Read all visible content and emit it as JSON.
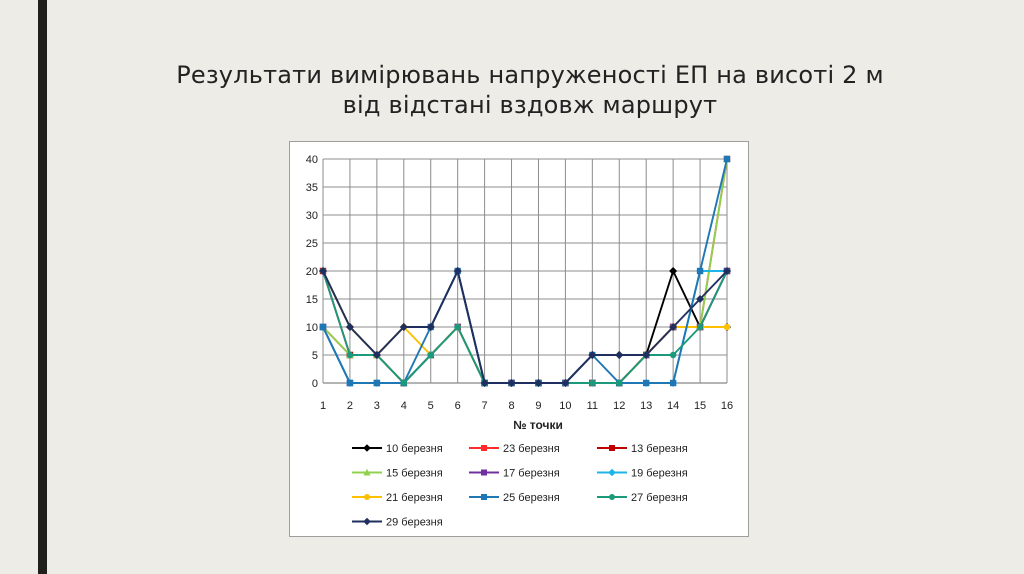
{
  "slide": {
    "title_line1": "Результати вимірювань напруженості ЕП на висоті 2 м",
    "title_line2": "від відстані вздовж маршрут"
  },
  "chart_data": {
    "type": "line",
    "xlabel": "№ точки",
    "ylabel": "",
    "categories": [
      1,
      2,
      3,
      4,
      5,
      6,
      7,
      8,
      9,
      10,
      11,
      12,
      13,
      14,
      15,
      16
    ],
    "ylim": [
      0,
      40
    ],
    "yticks": [
      0,
      5,
      10,
      15,
      20,
      25,
      30,
      35,
      40
    ],
    "grid": true,
    "legend_position": "bottom",
    "series": [
      {
        "name": "10 березня",
        "color": "#000000",
        "marker": "diamond",
        "values": [
          20,
          10,
          5,
          10,
          10,
          20,
          0,
          0,
          0,
          0,
          5,
          5,
          5,
          20,
          10,
          10
        ]
      },
      {
        "name": "23 березня",
        "color": "#ff2a2a",
        "marker": "square",
        "values": [
          10,
          5,
          5,
          0,
          5,
          10,
          0,
          0,
          0,
          0,
          0,
          0,
          5,
          10,
          10,
          40
        ]
      },
      {
        "name": "13 березня",
        "color": "#c00000",
        "marker": "square",
        "values": [
          20,
          5,
          5,
          0,
          5,
          10,
          0,
          0,
          0,
          0,
          0,
          0,
          5,
          10,
          10,
          20
        ]
      },
      {
        "name": "15 березня",
        "color": "#92d050",
        "marker": "triangle",
        "values": [
          10,
          5,
          5,
          0,
          5,
          10,
          0,
          0,
          0,
          0,
          0,
          0,
          5,
          10,
          10,
          40
        ]
      },
      {
        "name": "17 березня",
        "color": "#7030a0",
        "marker": "square",
        "values": [
          10,
          0,
          0,
          0,
          5,
          10,
          0,
          0,
          0,
          0,
          0,
          0,
          5,
          10,
          10,
          20
        ]
      },
      {
        "name": "19 березня",
        "color": "#1fb4e8",
        "marker": "diamond",
        "values": [
          10,
          0,
          0,
          0,
          5,
          10,
          0,
          0,
          0,
          0,
          0,
          0,
          0,
          0,
          20,
          20
        ]
      },
      {
        "name": "21 березня",
        "color": "#ffc000",
        "marker": "circle",
        "values": [
          20,
          10,
          5,
          10,
          5,
          10,
          0,
          0,
          0,
          0,
          0,
          0,
          5,
          10,
          10,
          10
        ]
      },
      {
        "name": "25 березня",
        "color": "#1f77b4",
        "marker": "square",
        "values": [
          10,
          0,
          0,
          0,
          10,
          20,
          0,
          0,
          0,
          0,
          5,
          0,
          0,
          0,
          20,
          40
        ]
      },
      {
        "name": "27 березня",
        "color": "#1a9a7a",
        "marker": "circle",
        "values": [
          20,
          5,
          5,
          0,
          5,
          10,
          0,
          0,
          0,
          0,
          0,
          0,
          5,
          5,
          10,
          20
        ]
      },
      {
        "name": "29 березня",
        "color": "#1f2f5f",
        "marker": "diamond",
        "values": [
          20,
          10,
          5,
          10,
          10,
          20,
          0,
          0,
          0,
          0,
          5,
          5,
          5,
          10,
          15,
          20
        ]
      }
    ]
  }
}
